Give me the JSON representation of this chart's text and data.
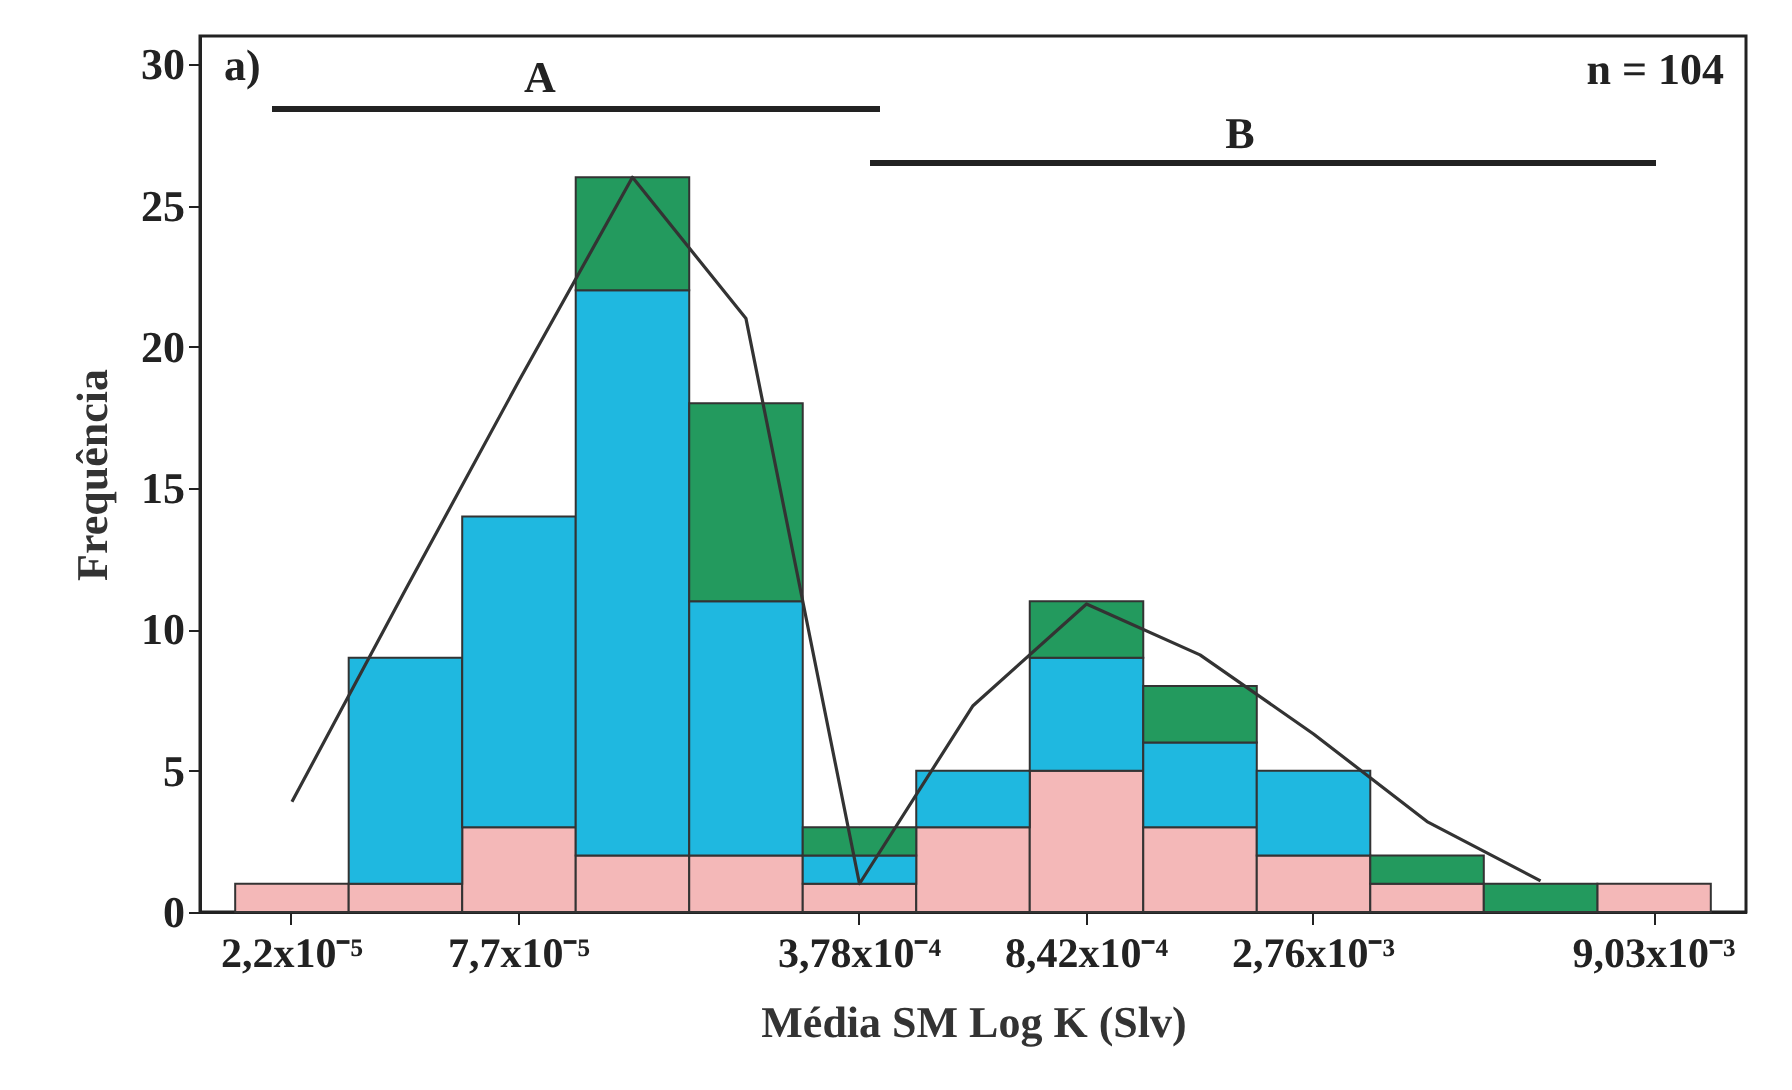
{
  "chart_data": {
    "type": "bar",
    "xlabel": "Média SM Log K (Slv)",
    "ylabel": "Frequência",
    "annotations": [
      "a)",
      "n = 104",
      "A",
      "B"
    ],
    "categories": [
      "2,2x10⁻⁵",
      null,
      "7,7x10⁻⁵",
      null,
      null,
      "3,78x10⁻⁴",
      null,
      "8,42x10⁻⁴",
      null,
      "2,76x10⁻³",
      null,
      null,
      "9,03x10⁻³"
    ],
    "stacked": true,
    "series": [
      {
        "color": "#f4b8b8",
        "values": [
          1,
          1,
          3,
          2,
          2,
          1,
          3,
          5,
          3,
          2,
          1,
          0,
          1
        ]
      },
      {
        "color": "#1fb8e0",
        "values": [
          0,
          8,
          11,
          20,
          9,
          1,
          2,
          4,
          3,
          3,
          0,
          0,
          0
        ]
      },
      {
        "color": "#239a5e",
        "values": [
          0,
          0,
          0,
          4,
          7,
          1,
          0,
          2,
          2,
          0,
          1,
          1,
          0
        ]
      },
      {
        "type": "line",
        "color": "#333333",
        "values": [
          3.9,
          11.4,
          18.8,
          26,
          21,
          1,
          7.3,
          10.9,
          9.1,
          6.3,
          3.2,
          1.1,
          null
        ]
      }
    ],
    "ylim": [
      0,
      31
    ],
    "yticks": [
      0,
      5,
      10,
      15,
      20,
      25,
      30
    ],
    "grid": false
  }
}
